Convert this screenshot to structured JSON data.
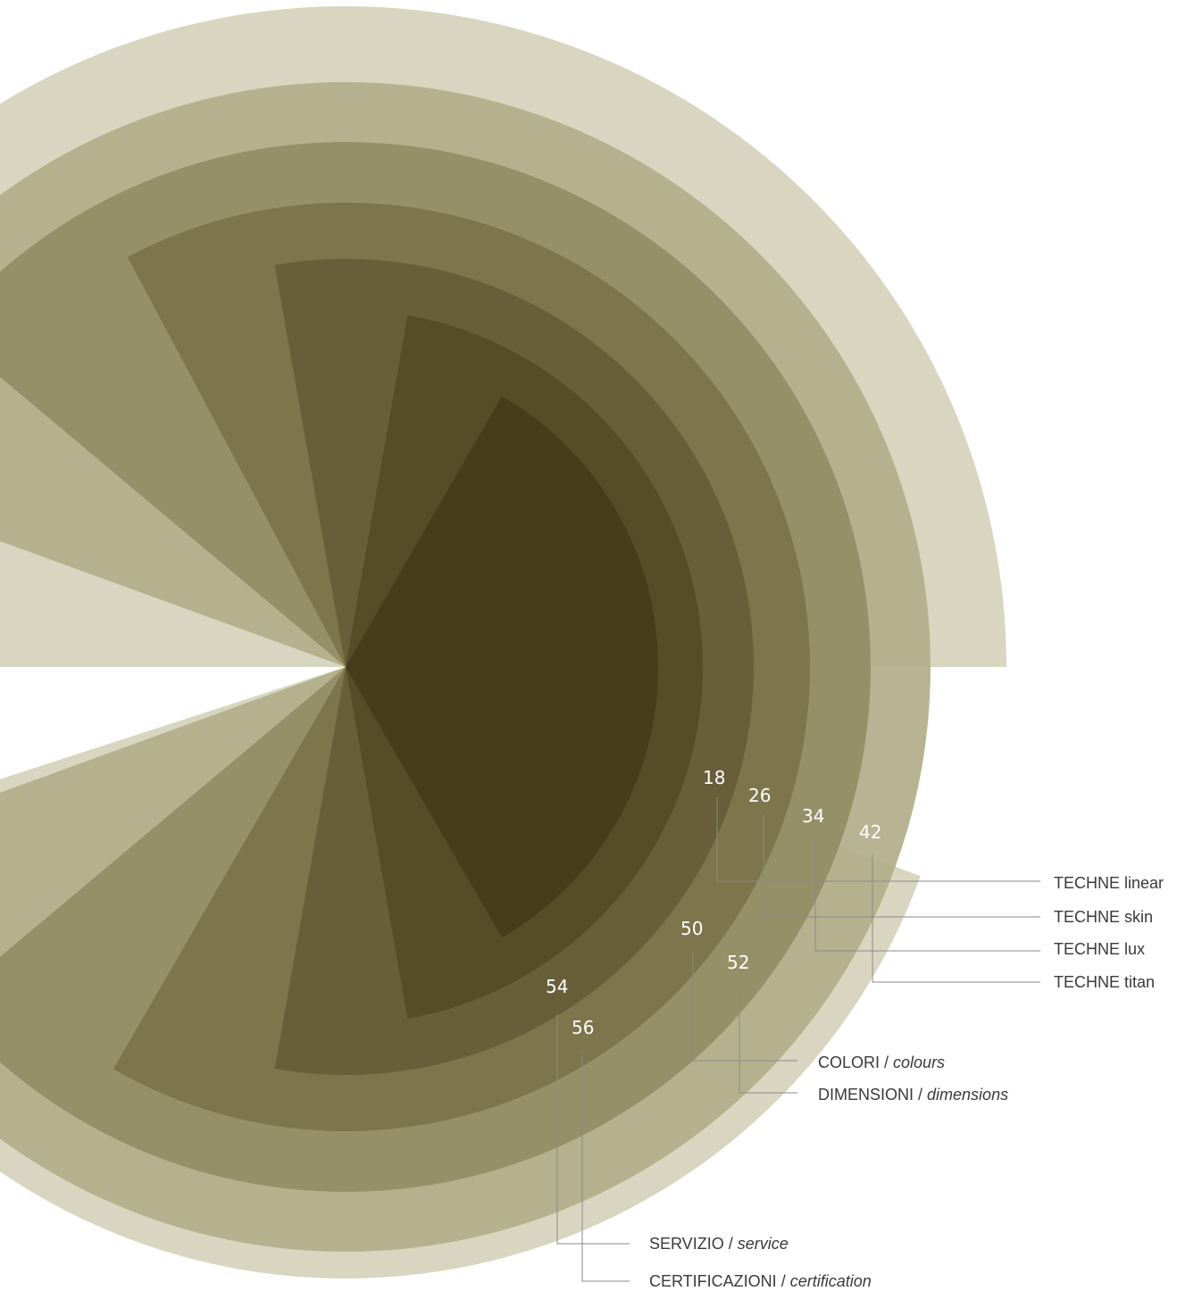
{
  "colors": {
    "ring1": "#d5d2bb",
    "ring2": "#b2ae8a",
    "ring3": "#938d64",
    "ring4": "#7b7349",
    "ring5": "#665d38",
    "ring6": "#544b27",
    "ring7": "#443c1b",
    "page_number": "#ffffff",
    "label_text": "#3a3a3a",
    "leader_line": "#8a8a8a"
  },
  "index": {
    "entries": [
      {
        "page": "18",
        "label": "TECHNE linear"
      },
      {
        "page": "26",
        "label": "TECHNE skin"
      },
      {
        "page": "34",
        "label": "TECHNE lux"
      },
      {
        "page": "42",
        "label": "TECHNE titan"
      },
      {
        "page": "50",
        "label": "COLORI",
        "label_en": "colours"
      },
      {
        "page": "52",
        "label": "DIMENSIONI",
        "label_en": "dimensions"
      },
      {
        "page": "54",
        "label": "SERVIZIO",
        "label_en": "service"
      },
      {
        "page": "56",
        "label": "CERTIFICAZIONI",
        "label_en": "certification"
      }
    ],
    "separator": " / "
  }
}
